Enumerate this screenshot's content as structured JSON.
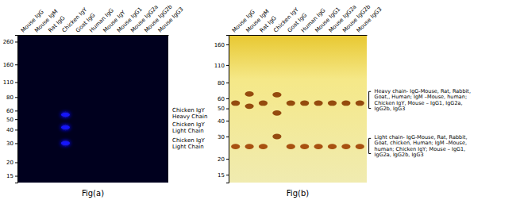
{
  "chart_data": [
    {
      "type": "blot",
      "title": "Fig(a)",
      "categories": [
        "Mouse IgG",
        "Mouse IgM",
        "Rat IgG",
        "Chicken IgY",
        "Goat IgG",
        "Human IgG",
        "Mouse IgY",
        "Mouse IgG1",
        "Mouse IgG2a",
        "Mouse IgG2b",
        "Mouse IgG3"
      ],
      "log": "y",
      "ylim": [
        13,
        300
      ],
      "yticks": [
        15,
        20,
        30,
        40,
        50,
        60,
        80,
        110,
        160,
        260
      ],
      "series": [
        {
          "color": "#1a1aff",
          "values": [
            null,
            null,
            null,
            55,
            null,
            null,
            null,
            null,
            null,
            null,
            null
          ]
        },
        {
          "color": "#1a1aff",
          "values": [
            null,
            null,
            null,
            42,
            null,
            null,
            null,
            null,
            null,
            null,
            null
          ]
        },
        {
          "color": "#1a1aff",
          "values": [
            null,
            null,
            null,
            30,
            null,
            null,
            null,
            null,
            null,
            null,
            null
          ]
        }
      ],
      "annotations": [
        {
          "text": "Chicken IgY\nHeavy Chain",
          "y": 57
        },
        {
          "text": "Chicken IgY\nLight Chain",
          "y": 42
        },
        {
          "text": "Chicken IgY\nLight Chain",
          "y": 30
        }
      ]
    },
    {
      "type": "blot",
      "title": "Fig(b)",
      "categories": [
        "Mouse IgG",
        "Mouse IgM",
        "Rat IgG",
        "Chicken IgY",
        "Goat IgG",
        "Human IgG",
        "Mouse IgG1",
        "Mouse IgG2a",
        "Mouse IgG2b",
        "Mouse IgG3"
      ],
      "log": "y",
      "ylim": [
        13,
        190
      ],
      "yticks": [
        15,
        20,
        30,
        40,
        50,
        60,
        80,
        110,
        160
      ],
      "series": [
        {
          "color": "#8B3A00",
          "values": [
            55,
            65,
            55,
            64,
            55,
            55,
            55,
            55,
            55,
            55
          ]
        },
        {
          "color": "#8B3A00",
          "values": [
            null,
            52,
            null,
            46,
            null,
            null,
            null,
            null,
            null,
            null
          ]
        },
        {
          "colors": [
            "#a04000",
            "#a04000",
            "#a04000",
            "#8B3A00",
            "#a04000",
            "#a04000",
            "#a04000",
            "#a04000",
            "#a04000",
            "#a04000"
          ],
          "values": [
            25,
            25,
            25,
            30,
            25,
            25,
            25,
            25,
            25,
            25
          ]
        }
      ],
      "annotations": [
        {
          "text": "Heavy chain- IgG-Mouse, Rat, Rabbit,\nGoat,, Human; IgM –Mouse, human;\nChicken IgY, Mouse – IgG1, IgG2a,\nIgG2b, IgG3",
          "y": [
            50,
            68
          ]
        },
        {
          "text": "Light chain- IgG-Mouse, Rat, Rabbit,\nGoat, chicken, Human; IgM –Mouse,\nhuman; Chicken IgY; Mouse – IgG1,\nIgG2a, IgG2b, IgG3",
          "y": [
            22,
            29
          ]
        }
      ]
    }
  ]
}
